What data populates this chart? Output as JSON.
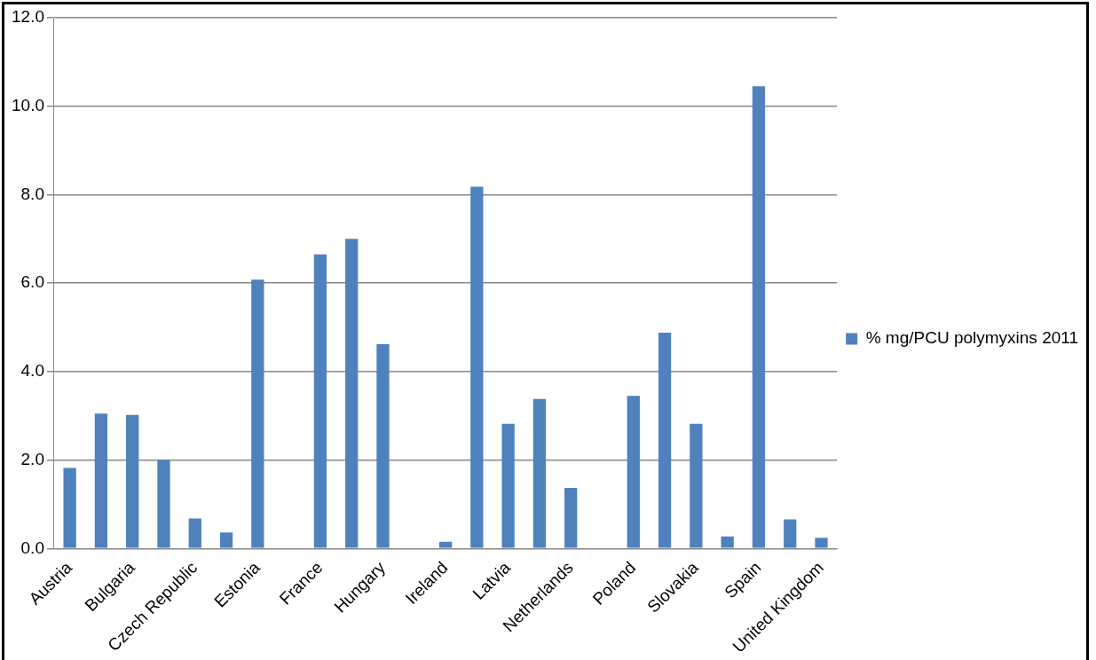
{
  "chart_data": {
    "type": "bar",
    "categories": [
      "Austria",
      null,
      "Bulgaria",
      null,
      "Czech Republic",
      null,
      "Estonia",
      null,
      "France",
      null,
      "Hungary",
      null,
      "Ireland",
      null,
      "Latvia",
      null,
      "Netherlands",
      null,
      "Poland",
      null,
      "Slovakia",
      null,
      "Spain",
      null,
      "United Kingdom"
    ],
    "series": [
      {
        "name": "% mg/PCU polymyxins 2011",
        "color": "#4f81bd",
        "values": [
          1.82,
          3.05,
          3.02,
          2.0,
          0.68,
          0.36,
          6.08,
          0,
          6.65,
          7.0,
          4.62,
          0,
          0.15,
          8.18,
          2.82,
          3.38,
          1.37,
          0,
          3.45,
          4.88,
          2.82,
          0.27,
          10.45,
          0.66,
          0.24
        ]
      }
    ],
    "ylim": [
      0,
      12
    ],
    "yticks": [
      {
        "value": 0,
        "label": "0.0"
      },
      {
        "value": 2,
        "label": "2.0"
      },
      {
        "value": 4,
        "label": "4.0"
      },
      {
        "value": 6,
        "label": "6.0"
      },
      {
        "value": 8,
        "label": "8.0"
      },
      {
        "value": 10,
        "label": "10.0"
      },
      {
        "value": 12,
        "label": "12.0"
      }
    ],
    "grid": "y",
    "legend": "right"
  }
}
